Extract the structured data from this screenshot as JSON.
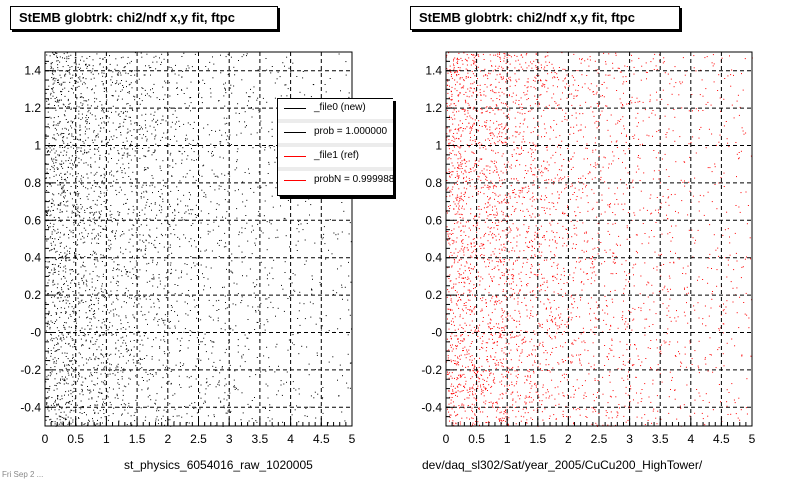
{
  "panels": [
    {
      "title": "StEMB globtrk: chi2/ndf x,y fit, ftpc",
      "footer": "st_physics_6054016_raw_1020005",
      "marker_color": "#000000"
    },
    {
      "title": "StEMB globtrk: chi2/ndf x,y fit, ftpc",
      "footer": "dev/daq_sl302/Sat/year_2005/CuCu200_HighTower/",
      "marker_color": "#ff0000"
    }
  ],
  "legend": {
    "entries": [
      {
        "label": "_file0 (new)",
        "color": "#000000"
      },
      {
        "label": "prob = 1.000000",
        "color": "#000000"
      },
      {
        "label": "_file1 (ref)",
        "color": "#ff0000"
      },
      {
        "label": "probN = 0.999988",
        "color": "#ff0000"
      }
    ]
  },
  "stamp": "Fri Sep 2 ...",
  "chart_data": [
    {
      "type": "scatter",
      "title": "StEMB globtrk: chi2/ndf x,y fit, ftpc",
      "xlabel": "",
      "ylabel": "",
      "xlim": [
        0,
        5
      ],
      "ylim": [
        -0.5,
        1.5
      ],
      "x_ticks": [
        "0",
        "0.5",
        "1",
        "1.5",
        "2",
        "2.5",
        "3",
        "3.5",
        "4",
        "4.5",
        "5"
      ],
      "y_ticks": [
        "-0.4",
        "-0.2",
        "-0",
        "0.2",
        "0.4",
        "0.6",
        "0.8",
        "1",
        "1.2",
        "1.4"
      ],
      "grid": true,
      "series": [
        {
          "name": "_file0 (new)",
          "color": "#000000",
          "density_profile": {
            "x_bins": [
              0,
              0.5,
              1,
              1.5,
              2,
              2.5,
              3,
              3.5,
              4,
              4.5,
              5
            ],
            "relative_density": [
              1.0,
              0.75,
              0.55,
              0.42,
              0.32,
              0.25,
              0.2,
              0.16,
              0.13,
              0.11
            ]
          }
        }
      ]
    },
    {
      "type": "scatter",
      "title": "StEMB globtrk: chi2/ndf x,y fit, ftpc",
      "xlabel": "",
      "ylabel": "",
      "xlim": [
        0,
        5
      ],
      "ylim": [
        -0.5,
        1.5
      ],
      "x_ticks": [
        "0",
        "0.5",
        "1",
        "1.5",
        "2",
        "2.5",
        "3",
        "3.5",
        "4",
        "4.5",
        "5"
      ],
      "y_ticks": [
        "-0.4",
        "-0.2",
        "-0",
        "0.2",
        "0.4",
        "0.6",
        "0.8",
        "1",
        "1.2",
        "1.4"
      ],
      "grid": true,
      "series": [
        {
          "name": "_file1 (ref)",
          "color": "#ff0000",
          "density_profile": {
            "x_bins": [
              0,
              0.5,
              1,
              1.5,
              2,
              2.5,
              3,
              3.5,
              4,
              4.5,
              5
            ],
            "relative_density": [
              1.0,
              0.8,
              0.6,
              0.46,
              0.36,
              0.28,
              0.22,
              0.18,
              0.15,
              0.13
            ]
          }
        }
      ]
    }
  ]
}
